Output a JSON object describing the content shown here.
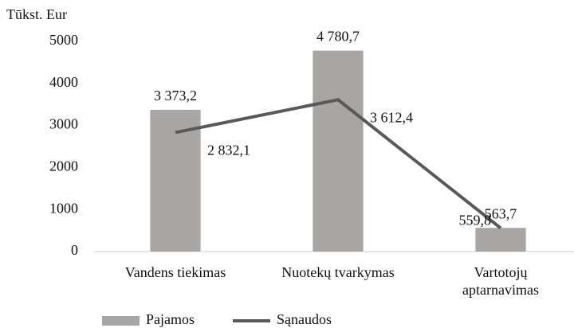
{
  "chart_data": {
    "type": "bar",
    "y_label": "Tūkst. Eur",
    "categories": [
      [
        "Vandens tiekimas"
      ],
      [
        "Nuotekų tvarkymas"
      ],
      [
        "Vartotojų",
        "aptarnavimas"
      ]
    ],
    "series": [
      {
        "name": "Pajamos",
        "kind": "bar",
        "color": "#a9a5a3",
        "values": [
          3373.2,
          4780.7,
          563.7
        ],
        "value_labels": [
          "3 373,2",
          "4 780,7",
          "563,7"
        ]
      },
      {
        "name": "Sąnaudos",
        "kind": "line",
        "color": "#595959",
        "values": [
          2832.1,
          3612.4,
          559.8
        ],
        "value_labels": [
          "2 832,1",
          "3 612,4",
          "559,8"
        ]
      }
    ],
    "ylim": [
      0,
      5000
    ],
    "yticks": [
      0,
      1000,
      2000,
      3000,
      4000,
      5000
    ],
    "grid": false,
    "legend": "bottom"
  }
}
